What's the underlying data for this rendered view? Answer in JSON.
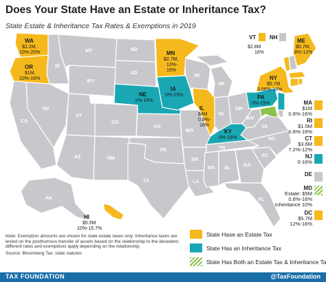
{
  "title": "Does Your State Have an Estate or Inheritance Tax?",
  "subtitle": "State Estate & Inheritance Tax Rates & Exemptions in 2019",
  "colors": {
    "estate": "#f5b91d",
    "inheritance": "#1aa7b4",
    "both": "#8bc34a",
    "none": "#c8c8cc",
    "footer": "#1a6ea8"
  },
  "map_states": {
    "WA": {
      "abbr": "WA",
      "line1": "$2.2M,",
      "line2": "10%-20%"
    },
    "OR": {
      "abbr": "OR",
      "line1": "$1M,",
      "line2": "10%-16%"
    },
    "MN": {
      "abbr": "MN",
      "line1": "$2.7M,",
      "line2": "13%-",
      "line3": "16%"
    },
    "IA": {
      "abbr": "IA",
      "line1": "0%-15%"
    },
    "NE": {
      "abbr": "NE",
      "line1": "1%-18%"
    },
    "IL": {
      "abbr": "IL",
      "line1": "$4M",
      "line2": "0.8%-",
      "line3": "16%"
    },
    "KY": {
      "abbr": "KY",
      "line1": "0%-16%"
    },
    "PA": {
      "abbr": "PA",
      "line1": "0%-15%"
    },
    "NY": {
      "abbr": "NY",
      "line1": "$5.7M",
      "line2": "3.06%-16%"
    },
    "ME": {
      "abbr": "ME",
      "line1": "$5.7M,",
      "line2": "8%-12%"
    },
    "VT": {
      "abbr": "VT",
      "line1": "$2.8M",
      "line2": "16%"
    },
    "NH": {
      "abbr": "NH"
    },
    "HI": {
      "abbr": "HI",
      "line1": "$5.5M",
      "line2": "10%-15.7%"
    },
    "grey_abbrs": [
      "ID",
      "MT",
      "ND",
      "SD",
      "WY",
      "NV",
      "UT",
      "CO",
      "CA",
      "AZ",
      "NM",
      "KS",
      "OK",
      "TX",
      "MO",
      "AR",
      "LA",
      "WI",
      "MI",
      "IN",
      "OH",
      "TN",
      "MS",
      "AL",
      "GA",
      "FL",
      "SC",
      "NC",
      "VA",
      "WV",
      "AK"
    ]
  },
  "sidebar": [
    {
      "abbr": "MA",
      "line1": "$1M",
      "line2": "0.8%-16%",
      "type": "estate"
    },
    {
      "abbr": "RI",
      "line1": "$1.5M",
      "line2": "0.8%-16%",
      "type": "estate"
    },
    {
      "abbr": "CT",
      "line1": "$3.6M",
      "line2": "7.2%-12%",
      "type": "estate"
    },
    {
      "abbr": "NJ",
      "line1": "0-16%",
      "line2": "",
      "type": "inheritance"
    },
    {
      "abbr": "DE",
      "line1": "",
      "line2": "",
      "type": "none"
    },
    {
      "abbr": "MD",
      "line1": "Estate: $5M",
      "line2": "0.8%-16%",
      "line3": "Inheritance 10%",
      "type": "both"
    },
    {
      "abbr": "DC",
      "line1": "$5.7M",
      "line2": "12%-16%",
      "type": "estate"
    }
  ],
  "legend": [
    {
      "label": "State Hase an Estate Tax",
      "type": "estate"
    },
    {
      "label": "State Has an Inheritance Tax",
      "type": "inheritance"
    },
    {
      "label": "State Has Both an Estate Tax & Inheritance Tax",
      "type": "both"
    }
  ],
  "note": {
    "text": "Note: Exemption amounts are shown for state estate taxes only. Inheritance taxes are levied on the posthumous transfer of assets based on the relationship to the decedent; different rates and exemptions apply depending on the relationship.",
    "source": "Source: Bloomberg Tax; state statutes"
  },
  "footer": {
    "left": "TAX FOUNDATION",
    "right": "@TaxFoundation"
  }
}
